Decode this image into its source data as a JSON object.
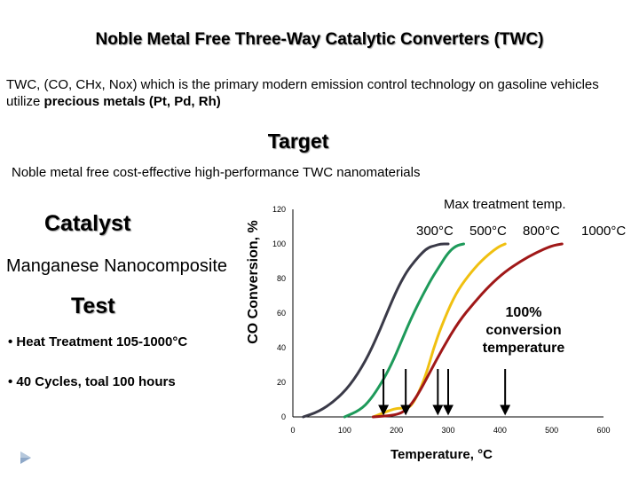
{
  "slide": {
    "title": "Noble Metal Free Three-Way Catalytic Converters (TWC)",
    "intro_plain": "TWC, (CO, CHx, Nox) which is the primary modern emission control technology on gasoline vehicles utilize ",
    "intro_bold": "precious metals (Pt, Pd, Rh)",
    "target_heading": "Target",
    "target_text": "Noble metal free cost-effective high-performance TWC nanomaterials",
    "catalyst_heading": "Catalyst",
    "catalyst_text": "Manganese Nanocomposite",
    "test_heading": "Test",
    "test_bullets": [
      "• Heat Treatment 105-1000°C",
      "• 40 Cycles, toal 100 hours"
    ],
    "footer_icon": "triangle-bullet-icon"
  },
  "chart_data": {
    "type": "line",
    "title": "",
    "xlabel": "Temperature, °C",
    "ylabel": "CO Conversion, %",
    "xlim": [
      0,
      600
    ],
    "ylim": [
      0,
      120
    ],
    "xticks": [
      "0",
      "100",
      "200",
      "300",
      "400",
      "500",
      "600"
    ],
    "yticks": [
      "0",
      "20",
      "40",
      "60",
      "80",
      "100",
      "120"
    ],
    "grid": false,
    "annotation_title": "Max treatment temp.",
    "annotation_100": [
      "100%",
      "conversion",
      "temperature"
    ],
    "series": [
      {
        "label": "300°C",
        "color": "#3a3a48",
        "x": [
          20,
          50,
          80,
          110,
          140,
          165,
          190,
          205,
          220,
          235,
          250,
          262,
          274,
          285,
          300
        ],
        "y": [
          0,
          3,
          9,
          18,
          32,
          48,
          66,
          76,
          84,
          90,
          95,
          98,
          99,
          100,
          100
        ]
      },
      {
        "label": "500°C",
        "color": "#1e9a5a",
        "x": [
          100,
          130,
          150,
          170,
          190,
          210,
          230,
          250,
          268,
          285,
          300,
          315,
          330
        ],
        "y": [
          0,
          4,
          10,
          19,
          30,
          44,
          58,
          70,
          80,
          88,
          95,
          99,
          100
        ]
      },
      {
        "label": "800°C",
        "color": "#f0c010",
        "x": [
          155,
          180,
          200,
          215,
          230,
          255,
          275,
          300,
          320,
          345,
          370,
          395,
          410
        ],
        "y": [
          0,
          3,
          5,
          5,
          6,
          22,
          43,
          62,
          74,
          84,
          92,
          98,
          100
        ]
      },
      {
        "label": "1000°C",
        "color": "#a01818",
        "x": [
          155,
          200,
          220,
          240,
          265,
          290,
          320,
          350,
          380,
          410,
          440,
          470,
          500,
          520
        ],
        "y": [
          0,
          1,
          4,
          12,
          26,
          40,
          55,
          66,
          76,
          84,
          90,
          95,
          99,
          100
        ]
      }
    ],
    "t100_arrows_x": [
      175,
      218,
      280,
      300,
      410
    ]
  }
}
